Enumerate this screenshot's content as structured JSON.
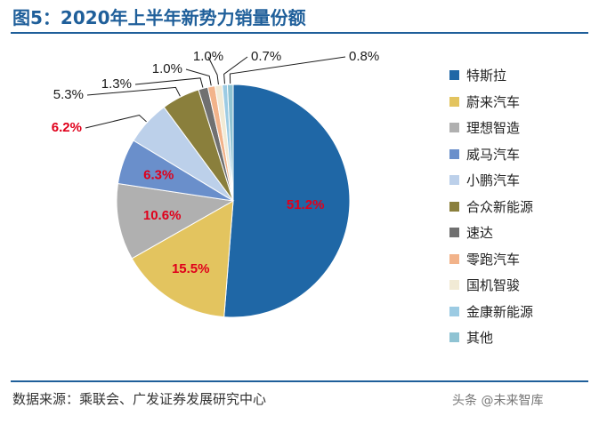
{
  "header": {
    "title": "图5：2020年上半年新势力销量份额"
  },
  "footer": {
    "source": "数据来源：乘联会、广发证券发展研究中心",
    "watermark": "头条 @未来智库"
  },
  "chart_data": {
    "type": "pie",
    "title": "图5：2020年上半年新势力销量份额",
    "legend_position": "right",
    "slices": [
      {
        "name": "特斯拉",
        "value": 51.2,
        "label": "51.2%",
        "color": "#1f67a6",
        "label_color": "#e0001b",
        "label_placement": "inside"
      },
      {
        "name": "蔚来汽车",
        "value": 15.5,
        "label": "15.5%",
        "color": "#e3c45f",
        "label_color": "#e0001b",
        "label_placement": "inside"
      },
      {
        "name": "理想智造",
        "value": 10.6,
        "label": "10.6%",
        "color": "#b0b0b0",
        "label_color": "#e0001b",
        "label_placement": "inside"
      },
      {
        "name": "威马汽车",
        "value": 6.3,
        "label": "6.3%",
        "color": "#6a8fcb",
        "label_color": "#e0001b",
        "label_placement": "inside"
      },
      {
        "name": "小鹏汽车",
        "value": 6.2,
        "label": "6.2%",
        "color": "#bcd0ea",
        "label_color": "#e0001b",
        "label_placement": "outside"
      },
      {
        "name": "合众新能源",
        "value": 5.3,
        "label": "5.3%",
        "color": "#8a7f3c",
        "label_color": "#1a1a1a",
        "label_placement": "outside"
      },
      {
        "name": "速达",
        "value": 1.3,
        "label": "1.3%",
        "color": "#707070",
        "label_color": "#1a1a1a",
        "label_placement": "outside"
      },
      {
        "name": "零跑汽车",
        "value": 1.0,
        "label": "1.0%",
        "color": "#f2b38a",
        "label_color": "#1a1a1a",
        "label_placement": "outside"
      },
      {
        "name": "国机智骏",
        "value": 1.0,
        "label": "1.0%",
        "color": "#f1ead5",
        "label_color": "#1a1a1a",
        "label_placement": "outside"
      },
      {
        "name": "金康新能源",
        "value": 0.7,
        "label": "0.7%",
        "color": "#9ccbe3",
        "label_color": "#1a1a1a",
        "label_placement": "outside"
      },
      {
        "name": "其他",
        "value": 0.8,
        "label": "0.8%",
        "color": "#8fc3d3",
        "label_color": "#1a1a1a",
        "label_placement": "outside"
      }
    ]
  }
}
